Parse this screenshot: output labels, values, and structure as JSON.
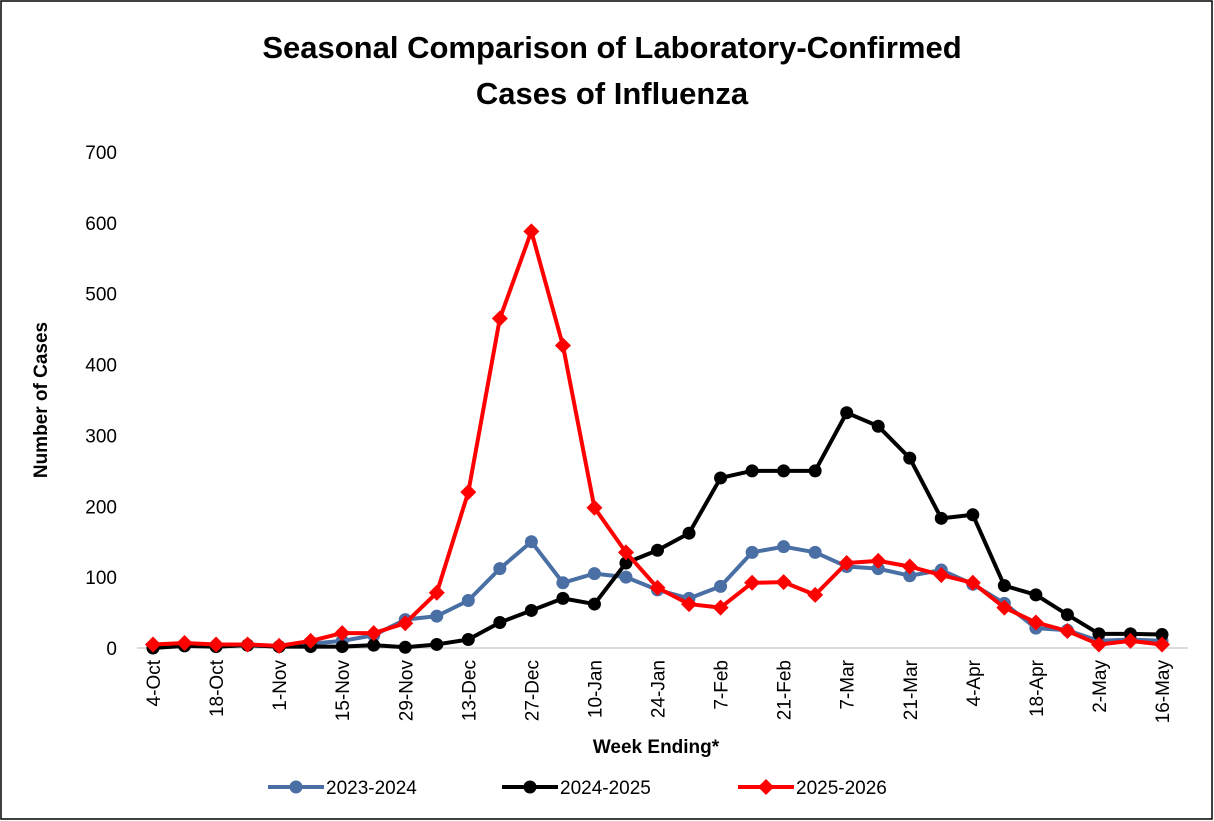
{
  "chart_data": {
    "type": "line",
    "title": [
      "Seasonal Comparison of Laboratory-Confirmed",
      "Cases of Influenza"
    ],
    "x_label": "Week Ending*",
    "y_label": "Number of Cases",
    "categories": [
      "4-Oct",
      null,
      "18-Oct",
      null,
      "1-Nov",
      null,
      "15-Nov",
      null,
      "29-Nov",
      null,
      "13-Dec",
      null,
      "27-Dec",
      null,
      "10-Jan",
      null,
      "24-Jan",
      null,
      "7-Feb",
      null,
      "21-Feb",
      null,
      "7-Mar",
      null,
      "21-Mar",
      null,
      "4-Apr",
      null,
      "18-Apr",
      null,
      "2-May",
      null,
      "16-May"
    ],
    "ylim": [
      0,
      700
    ],
    "yticks": [
      0,
      100,
      200,
      300,
      400,
      500,
      600,
      700
    ],
    "legend": "bottom",
    "series": [
      {
        "name": "2023-2024",
        "color": "#4a6fa5",
        "marker": "circle",
        "values": [
          2,
          4,
          2,
          4,
          2,
          6,
          10,
          18,
          40,
          45,
          67,
          112,
          150,
          92,
          105,
          100,
          82,
          70,
          87,
          135,
          143,
          135,
          115,
          112,
          102,
          110,
          90,
          63,
          28,
          25,
          10,
          12,
          10
        ]
      },
      {
        "name": "2024-2025",
        "color": "#000000",
        "marker": "circle",
        "values": [
          0,
          3,
          2,
          4,
          2,
          2,
          2,
          4,
          1,
          5,
          12,
          36,
          53,
          70,
          62,
          120,
          138,
          162,
          240,
          250,
          250,
          250,
          332,
          313,
          268,
          183,
          188,
          88,
          75,
          47,
          20,
          20,
          19
        ]
      },
      {
        "name": "2025-2026",
        "color": "#ff0000",
        "marker": "diamond",
        "values": [
          5,
          7,
          5,
          5,
          3,
          10,
          21,
          21,
          35,
          78,
          220,
          465,
          588,
          427,
          198,
          135,
          85,
          62,
          57,
          92,
          93,
          75,
          120,
          123,
          115,
          103,
          92,
          57,
          36,
          24,
          5,
          10,
          5
        ]
      }
    ]
  }
}
